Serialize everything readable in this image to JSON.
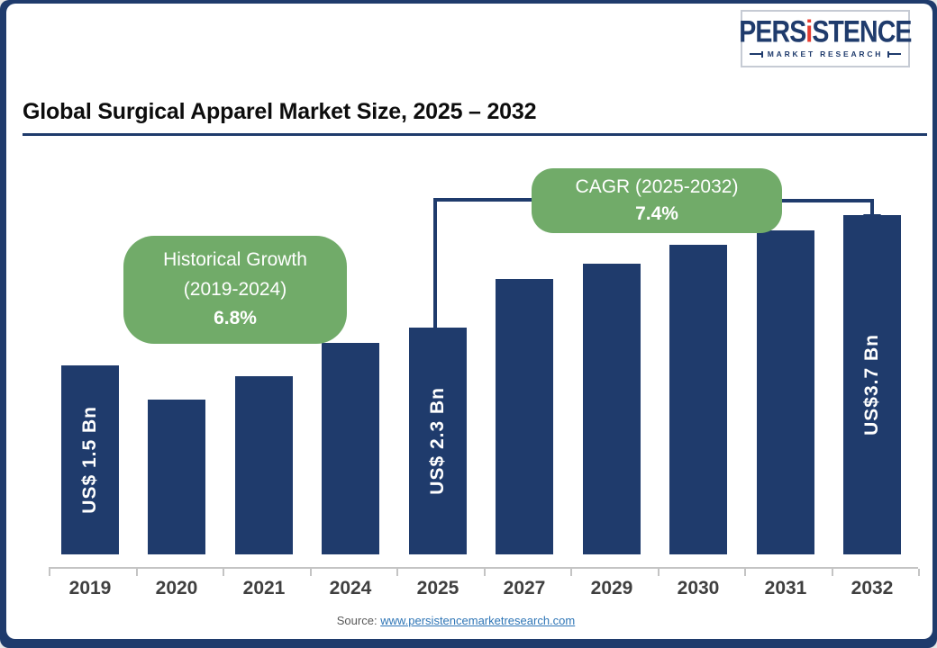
{
  "header": {
    "title": "Global Surgical Apparel Market Size, 2025 – 2032"
  },
  "logo": {
    "brand_pre": "PERS",
    "brand_i": "i",
    "brand_post": "STENCE",
    "subtitle": "MARKET RESEARCH"
  },
  "annotations": {
    "historical": {
      "line1": "Historical Growth",
      "line2": "(2019-2024)",
      "value": "6.8%"
    },
    "cagr": {
      "line1": "CAGR (2025-2032)",
      "value": "7.4%"
    }
  },
  "source": {
    "label": "Source:",
    "link_text": "www.persistencemarketresearch.com"
  },
  "colors": {
    "bar_navy": "#1F3B6C",
    "accent_green": "#71AB69",
    "logo_red": "#E63C2F",
    "link_blue": "#2E75B6"
  },
  "chart_data": {
    "type": "bar",
    "title": "Global Surgical Apparel Market Size, 2025 – 2032",
    "unit": "US$ Bn",
    "categories": [
      "2019",
      "2020",
      "2021",
      "2024",
      "2025",
      "2027",
      "2029",
      "2030",
      "2031",
      "2032"
    ],
    "values": [
      1.5,
      1.35,
      1.45,
      2.1,
      2.3,
      2.65,
      3.05,
      3.3,
      3.5,
      3.7
    ],
    "labeled_bars": {
      "2019": "US$ 1.5 Bn",
      "2025": "US$ 2.3 Bn",
      "2032": "US$3.7 Bn"
    },
    "bar_height_ratios": [
      0.557,
      0.456,
      0.525,
      0.623,
      0.668,
      0.812,
      0.857,
      0.912,
      0.955,
      1.0
    ],
    "historical_growth_2019_2024": "6.8%",
    "cagr_2025_2032": "7.4%",
    "xlabel": "",
    "ylabel": "",
    "grid": false,
    "legend": false,
    "y_axis_shown": false
  }
}
